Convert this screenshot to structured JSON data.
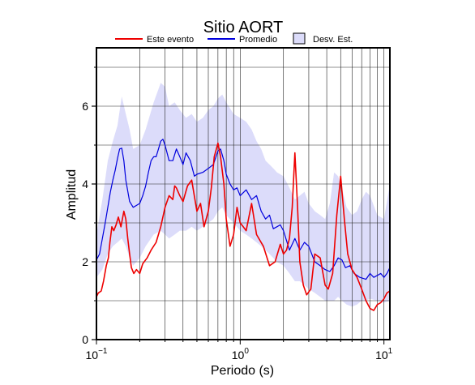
{
  "chart_data": {
    "type": "line",
    "title": "Sitio AORT",
    "xlabel": "Periodo (s)",
    "ylabel": "Amplitud",
    "xscale": "log",
    "xlim": [
      0.1,
      11
    ],
    "ylim": [
      0,
      7.5
    ],
    "x_tick_labels": [
      {
        "value": 0.1,
        "base": "10",
        "exp": "−1"
      },
      {
        "value": 1,
        "base": "10",
        "exp": "0"
      },
      {
        "value": 10,
        "base": "10",
        "exp": "1"
      }
    ],
    "y_ticks": [
      0,
      2,
      4,
      6
    ],
    "grid": true,
    "legend_position": "top",
    "colors": {
      "event": "#ee0000",
      "mean": "#0000dd",
      "band": "#dcdcfa"
    },
    "legend": [
      {
        "key": "event",
        "label": "Este evento",
        "kind": "line"
      },
      {
        "key": "mean",
        "label": "Promedio",
        "kind": "line"
      },
      {
        "key": "band",
        "label": "Desv. Est.",
        "kind": "box"
      }
    ],
    "series": [
      {
        "key": "event",
        "name": "Este evento",
        "points": [
          [
            0.1,
            1.1
          ],
          [
            0.103,
            1.2
          ],
          [
            0.108,
            1.25
          ],
          [
            0.112,
            1.5
          ],
          [
            0.117,
            1.9
          ],
          [
            0.121,
            2.1
          ],
          [
            0.124,
            2.5
          ],
          [
            0.128,
            2.9
          ],
          [
            0.132,
            2.8
          ],
          [
            0.137,
            2.95
          ],
          [
            0.142,
            3.15
          ],
          [
            0.148,
            2.9
          ],
          [
            0.155,
            3.3
          ],
          [
            0.16,
            3.1
          ],
          [
            0.165,
            2.6
          ],
          [
            0.17,
            2.2
          ],
          [
            0.175,
            1.85
          ],
          [
            0.182,
            1.7
          ],
          [
            0.19,
            1.8
          ],
          [
            0.2,
            1.7
          ],
          [
            0.21,
            1.95
          ],
          [
            0.225,
            2.1
          ],
          [
            0.24,
            2.3
          ],
          [
            0.26,
            2.5
          ],
          [
            0.28,
            2.9
          ],
          [
            0.3,
            3.4
          ],
          [
            0.32,
            3.7
          ],
          [
            0.34,
            3.6
          ],
          [
            0.35,
            3.95
          ],
          [
            0.36,
            3.9
          ],
          [
            0.38,
            3.7
          ],
          [
            0.4,
            3.55
          ],
          [
            0.43,
            3.95
          ],
          [
            0.46,
            4.1
          ],
          [
            0.5,
            3.3
          ],
          [
            0.53,
            3.5
          ],
          [
            0.56,
            2.9
          ],
          [
            0.6,
            3.3
          ],
          [
            0.63,
            3.9
          ],
          [
            0.66,
            4.7
          ],
          [
            0.7,
            5.05
          ],
          [
            0.73,
            4.7
          ],
          [
            0.77,
            4.0
          ],
          [
            0.8,
            3.1
          ],
          [
            0.85,
            2.4
          ],
          [
            0.9,
            2.7
          ],
          [
            0.95,
            3.4
          ],
          [
            1.0,
            3.0
          ],
          [
            1.05,
            2.9
          ],
          [
            1.1,
            2.8
          ],
          [
            1.2,
            3.5
          ],
          [
            1.3,
            2.7
          ],
          [
            1.45,
            2.4
          ],
          [
            1.6,
            1.9
          ],
          [
            1.75,
            2.0
          ],
          [
            1.9,
            2.45
          ],
          [
            2.0,
            2.2
          ],
          [
            2.1,
            2.3
          ],
          [
            2.2,
            2.6
          ],
          [
            2.3,
            3.4
          ],
          [
            2.4,
            4.8
          ],
          [
            2.5,
            3.5
          ],
          [
            2.6,
            2.0
          ],
          [
            2.75,
            1.4
          ],
          [
            2.9,
            1.15
          ],
          [
            3.1,
            1.3
          ],
          [
            3.3,
            2.2
          ],
          [
            3.6,
            2.1
          ],
          [
            3.9,
            1.4
          ],
          [
            4.1,
            1.3
          ],
          [
            4.4,
            1.7
          ],
          [
            4.7,
            3.2
          ],
          [
            5.0,
            4.2
          ],
          [
            5.3,
            3.1
          ],
          [
            5.6,
            2.2
          ],
          [
            6.0,
            1.8
          ],
          [
            6.5,
            1.6
          ],
          [
            7.0,
            1.3
          ],
          [
            7.5,
            1.0
          ],
          [
            8.0,
            0.8
          ],
          [
            8.5,
            0.75
          ],
          [
            9.0,
            0.9
          ],
          [
            9.5,
            0.95
          ],
          [
            10.0,
            1.05
          ],
          [
            10.5,
            1.2
          ],
          [
            11.0,
            1.25
          ]
        ]
      },
      {
        "key": "mean",
        "name": "Promedio",
        "points": [
          [
            0.1,
            2.05
          ],
          [
            0.105,
            2.2
          ],
          [
            0.11,
            2.6
          ],
          [
            0.115,
            3.0
          ],
          [
            0.12,
            3.4
          ],
          [
            0.125,
            3.8
          ],
          [
            0.13,
            4.1
          ],
          [
            0.135,
            4.35
          ],
          [
            0.14,
            4.65
          ],
          [
            0.145,
            4.9
          ],
          [
            0.15,
            4.92
          ],
          [
            0.155,
            4.6
          ],
          [
            0.16,
            4.1
          ],
          [
            0.17,
            3.55
          ],
          [
            0.18,
            3.4
          ],
          [
            0.19,
            3.45
          ],
          [
            0.2,
            3.5
          ],
          [
            0.21,
            3.7
          ],
          [
            0.22,
            3.95
          ],
          [
            0.23,
            4.3
          ],
          [
            0.24,
            4.6
          ],
          [
            0.25,
            4.7
          ],
          [
            0.26,
            4.7
          ],
          [
            0.27,
            4.9
          ],
          [
            0.28,
            5.1
          ],
          [
            0.29,
            5.15
          ],
          [
            0.3,
            5.0
          ],
          [
            0.32,
            4.6
          ],
          [
            0.34,
            4.6
          ],
          [
            0.36,
            4.9
          ],
          [
            0.38,
            4.7
          ],
          [
            0.4,
            4.5
          ],
          [
            0.42,
            4.8
          ],
          [
            0.45,
            4.6
          ],
          [
            0.48,
            4.2
          ],
          [
            0.5,
            4.25
          ],
          [
            0.55,
            4.3
          ],
          [
            0.6,
            4.4
          ],
          [
            0.65,
            4.5
          ],
          [
            0.7,
            4.85
          ],
          [
            0.73,
            4.9
          ],
          [
            0.77,
            4.6
          ],
          [
            0.8,
            4.25
          ],
          [
            0.85,
            4.0
          ],
          [
            0.9,
            3.85
          ],
          [
            0.95,
            3.9
          ],
          [
            1.0,
            3.7
          ],
          [
            1.1,
            3.85
          ],
          [
            1.2,
            3.6
          ],
          [
            1.3,
            3.7
          ],
          [
            1.4,
            3.3
          ],
          [
            1.5,
            3.1
          ],
          [
            1.6,
            3.2
          ],
          [
            1.7,
            2.85
          ],
          [
            1.8,
            2.9
          ],
          [
            1.9,
            2.95
          ],
          [
            2.0,
            2.8
          ],
          [
            2.2,
            2.3
          ],
          [
            2.4,
            2.6
          ],
          [
            2.6,
            2.3
          ],
          [
            2.8,
            2.5
          ],
          [
            3.0,
            2.4
          ],
          [
            3.3,
            2.0
          ],
          [
            3.6,
            1.9
          ],
          [
            3.9,
            1.8
          ],
          [
            4.2,
            1.75
          ],
          [
            4.5,
            1.9
          ],
          [
            4.8,
            2.1
          ],
          [
            5.1,
            2.05
          ],
          [
            5.4,
            1.85
          ],
          [
            5.8,
            1.9
          ],
          [
            6.2,
            1.7
          ],
          [
            6.8,
            1.6
          ],
          [
            7.5,
            1.55
          ],
          [
            8.0,
            1.7
          ],
          [
            8.5,
            1.6
          ],
          [
            9.0,
            1.65
          ],
          [
            9.5,
            1.7
          ],
          [
            10.0,
            1.6
          ],
          [
            10.5,
            1.7
          ],
          [
            11.0,
            1.85
          ]
        ]
      },
      {
        "key": "band",
        "name": "Desv. Est.",
        "x": [
          0.1,
          0.11,
          0.12,
          0.13,
          0.14,
          0.15,
          0.16,
          0.17,
          0.18,
          0.2,
          0.22,
          0.25,
          0.28,
          0.3,
          0.32,
          0.35,
          0.38,
          0.42,
          0.46,
          0.5,
          0.55,
          0.6,
          0.65,
          0.7,
          0.75,
          0.8,
          0.9,
          1.0,
          1.1,
          1.2,
          1.3,
          1.4,
          1.5,
          1.6,
          1.7,
          1.8,
          2.0,
          2.2,
          2.4,
          2.6,
          2.8,
          3.0,
          3.3,
          3.6,
          3.9,
          4.2,
          4.5,
          4.8,
          5.1,
          5.5,
          6.0,
          6.5,
          7.0,
          7.5,
          8.0,
          9.0,
          10.0,
          11.0
        ],
        "upper": [
          2.7,
          3.6,
          4.6,
          5.1,
          5.5,
          6.25,
          5.8,
          5.4,
          4.9,
          5.0,
          5.4,
          6.1,
          6.6,
          6.5,
          6.0,
          6.1,
          5.9,
          5.7,
          5.8,
          5.6,
          5.7,
          5.9,
          6.0,
          6.2,
          6.3,
          6.1,
          5.8,
          5.7,
          5.6,
          5.4,
          5.1,
          4.9,
          4.6,
          4.5,
          4.4,
          4.3,
          4.2,
          3.9,
          3.6,
          3.7,
          3.8,
          3.5,
          3.3,
          3.2,
          3.1,
          3.5,
          4.3,
          4.2,
          3.9,
          3.4,
          3.2,
          3.3,
          3.6,
          3.8,
          3.7,
          3.2,
          3.1,
          4.0
        ],
        "lower": [
          1.6,
          1.8,
          2.2,
          2.4,
          2.5,
          2.6,
          2.4,
          2.1,
          1.9,
          2.1,
          2.4,
          2.7,
          2.8,
          2.7,
          2.6,
          2.7,
          2.8,
          2.8,
          2.9,
          2.8,
          2.9,
          3.0,
          3.1,
          3.3,
          3.4,
          3.2,
          3.0,
          2.8,
          2.7,
          2.6,
          2.5,
          2.4,
          2.3,
          2.2,
          2.1,
          2.0,
          1.9,
          1.7,
          1.5,
          1.5,
          1.4,
          1.3,
          1.2,
          1.1,
          1.0,
          1.0,
          1.0,
          1.1,
          1.0,
          0.9,
          0.85,
          0.9,
          1.0,
          1.0,
          1.05,
          1.0,
          0.95,
          1.0
        ]
      }
    ]
  }
}
